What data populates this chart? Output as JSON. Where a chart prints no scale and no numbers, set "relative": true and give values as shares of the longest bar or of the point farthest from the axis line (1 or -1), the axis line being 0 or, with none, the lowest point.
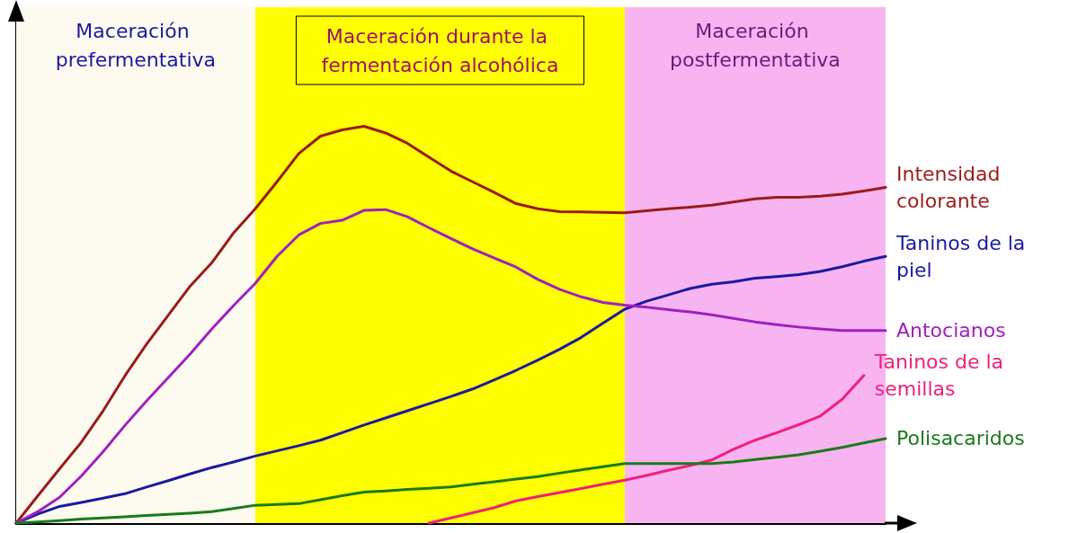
{
  "chart_data": {
    "type": "line",
    "relative": true,
    "tick_labels": false,
    "marker": "none",
    "line_style": "solid",
    "categories": [
      null,
      null,
      null,
      null,
      null,
      null,
      null,
      null,
      null,
      null,
      null,
      null,
      null,
      null,
      null,
      null,
      null,
      null,
      null,
      null,
      null,
      null,
      null,
      null,
      null,
      null,
      null,
      null,
      null,
      null,
      null,
      null,
      null,
      null,
      null,
      null,
      null,
      null,
      null,
      null,
      null
    ],
    "annotations": [
      "Maceración prefermentativa",
      "Maceración durante la fermentación alcohólica",
      "Maceración postfermentativa"
    ],
    "series": [
      {
        "name": "Intensidad colorante",
        "color": "#9b1b1b",
        "values": [
          0,
          0.069,
          0.137,
          0.204,
          0.283,
          0.371,
          0.451,
          0.524,
          0.597,
          0.656,
          0.731,
          0.792,
          0.86,
          0.931,
          0.975,
          0.991,
          1,
          0.983,
          0.957,
          0.922,
          0.887,
          0.86,
          0.833,
          0.805,
          0.792,
          0.785,
          0.784,
          0.783,
          0.782,
          0.787,
          0.792,
          0.796,
          0.801,
          0.809,
          0.817,
          0.821,
          0.821,
          0.824,
          0.829,
          0.837,
          0.846
        ]
      },
      {
        "name": "Taninos de la piel",
        "color": "#1a1aa0",
        "values": [
          0,
          0.023,
          0.042,
          0.052,
          0.063,
          0.074,
          0.091,
          0.107,
          0.124,
          0.14,
          0.154,
          0.169,
          0.182,
          0.195,
          0.209,
          0.228,
          0.247,
          0.265,
          0.283,
          0.301,
          0.319,
          0.338,
          0.361,
          0.385,
          0.411,
          0.438,
          0.468,
          0.504,
          0.539,
          0.559,
          0.575,
          0.591,
          0.602,
          0.608,
          0.617,
          0.621,
          0.626,
          0.634,
          0.646,
          0.66,
          0.672
        ]
      },
      {
        "name": "Antocianos",
        "color": "#a020c0",
        "values": [
          0,
          0.029,
          0.065,
          0.119,
          0.18,
          0.246,
          0.308,
          0.367,
          0.426,
          0.489,
          0.548,
          0.604,
          0.672,
          0.726,
          0.755,
          0.763,
          0.788,
          0.79,
          0.772,
          0.744,
          0.717,
          0.691,
          0.668,
          0.645,
          0.614,
          0.589,
          0.57,
          0.556,
          0.549,
          0.544,
          0.538,
          0.532,
          0.525,
          0.516,
          0.507,
          0.5,
          0.494,
          0.489,
          0.485,
          0.485,
          0.485
        ]
      },
      {
        "name": "Taninos de la semillas",
        "color": "#f0207a",
        "values": [
          null,
          null,
          null,
          null,
          null,
          null,
          null,
          null,
          null,
          null,
          null,
          null,
          null,
          null,
          null,
          null,
          null,
          null,
          null,
          0,
          0.013,
          0.026,
          0.039,
          0.056,
          0.067,
          0.077,
          0.087,
          0.098,
          0.108,
          0.12,
          0.133,
          0.145,
          0.159,
          0.186,
          0.209,
          0.228,
          0.248,
          0.27,
          0.312,
          0.372,
          null
        ]
      },
      {
        "name": "Polisacaridos",
        "color": "#1a7a1a",
        "values": [
          0,
          0.003,
          0.006,
          0.01,
          0.013,
          0.016,
          0.019,
          0.022,
          0.025,
          0.029,
          0.037,
          0.045,
          0.047,
          0.049,
          0.059,
          0.069,
          0.078,
          0.081,
          0.085,
          0.088,
          0.091,
          0.098,
          0.104,
          0.111,
          0.117,
          0.126,
          0.134,
          0.142,
          0.15,
          0.15,
          0.15,
          0.15,
          0.15,
          0.154,
          0.16,
          0.166,
          0.172,
          0.181,
          0.191,
          0.202,
          0.213
        ]
      }
    ]
  }
}
